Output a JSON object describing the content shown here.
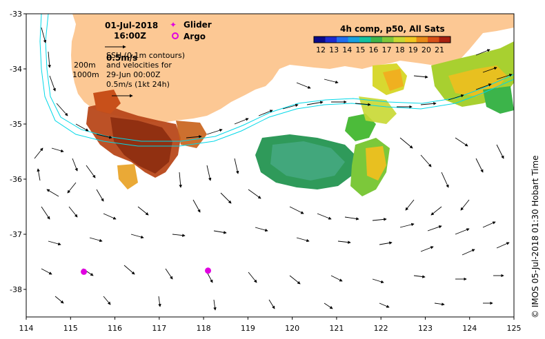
{
  "map": {
    "date_label": "01-Jul-2018",
    "time_label": "16:00Z",
    "legend": {
      "glider_label": "Glider",
      "argo_label": "Argo",
      "glider_color": "#e000e0",
      "argo_color": "#e000e0"
    },
    "velocity_legend": {
      "ref_label_top": "0.5m/s",
      "ssh_line": "SSH (0.1m contours)",
      "velocities_line": "and velocities for",
      "velocities_date": "29-Jun 00:00Z",
      "ref_label_bottom": "0.5m/s (1kt 24h)"
    },
    "contours": {
      "label_200": "200m",
      "label_1000": "1000m",
      "color": "#00d8e8"
    },
    "colorbar": {
      "title": "4h comp, p50, All Sats",
      "ticks": [
        "12",
        "13",
        "14",
        "15",
        "16",
        "17",
        "18",
        "19",
        "20",
        "21"
      ],
      "colors": [
        "#0a0a8a",
        "#1c2ad0",
        "#1f6df0",
        "#16a0e0",
        "#12c2a0",
        "#3cb44a",
        "#7ec83a",
        "#c8d832",
        "#f0c820",
        "#e88a18",
        "#d85018",
        "#a82010"
      ]
    },
    "credit": "© IMOS 05-Jul-2018 01:30 Hobart Time",
    "land_color": "#fcc894",
    "x_ticks": [
      "114",
      "115",
      "116",
      "117",
      "118",
      "119",
      "120",
      "121",
      "122",
      "123",
      "124",
      "125"
    ],
    "y_ticks": [
      "-33",
      "-34",
      "-35",
      "-36",
      "-37",
      "-38"
    ],
    "x_range": [
      114,
      125
    ],
    "y_range": [
      -38.5,
      -33
    ],
    "glider_positions": [],
    "argo_positions": [
      [
        115.3,
        -37.68
      ],
      [
        118.1,
        -37.66
      ]
    ]
  }
}
